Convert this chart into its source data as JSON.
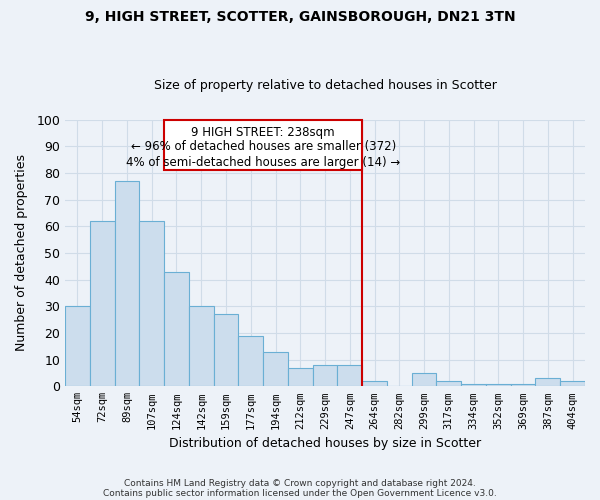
{
  "title": "9, HIGH STREET, SCOTTER, GAINSBOROUGH, DN21 3TN",
  "subtitle": "Size of property relative to detached houses in Scotter",
  "xlabel": "Distribution of detached houses by size in Scotter",
  "ylabel": "Number of detached properties",
  "bar_labels": [
    "54sqm",
    "72sqm",
    "89sqm",
    "107sqm",
    "124sqm",
    "142sqm",
    "159sqm",
    "177sqm",
    "194sqm",
    "212sqm",
    "229sqm",
    "247sqm",
    "264sqm",
    "282sqm",
    "299sqm",
    "317sqm",
    "334sqm",
    "352sqm",
    "369sqm",
    "387sqm",
    "404sqm"
  ],
  "bar_values": [
    30,
    62,
    77,
    62,
    43,
    30,
    27,
    19,
    13,
    7,
    8,
    8,
    2,
    0,
    5,
    2,
    1,
    1,
    1,
    3,
    2
  ],
  "bar_color": "#ccdded",
  "bar_edge_color": "#6aafd4",
  "grid_color": "#d0dce8",
  "vline_x": 11.5,
  "vline_color": "#cc0000",
  "ylim": [
    0,
    100
  ],
  "box_text_line1": "9 HIGH STREET: 238sqm",
  "box_text_line2": "← 96% of detached houses are smaller (372)",
  "box_text_line3": "4% of semi-detached houses are larger (14) →",
  "box_edge_color": "#cc0000",
  "box_face_color": "#ffffff",
  "footer1": "Contains HM Land Registry data © Crown copyright and database right 2024.",
  "footer2": "Contains public sector information licensed under the Open Government Licence v3.0.",
  "background_color": "#edf2f8"
}
